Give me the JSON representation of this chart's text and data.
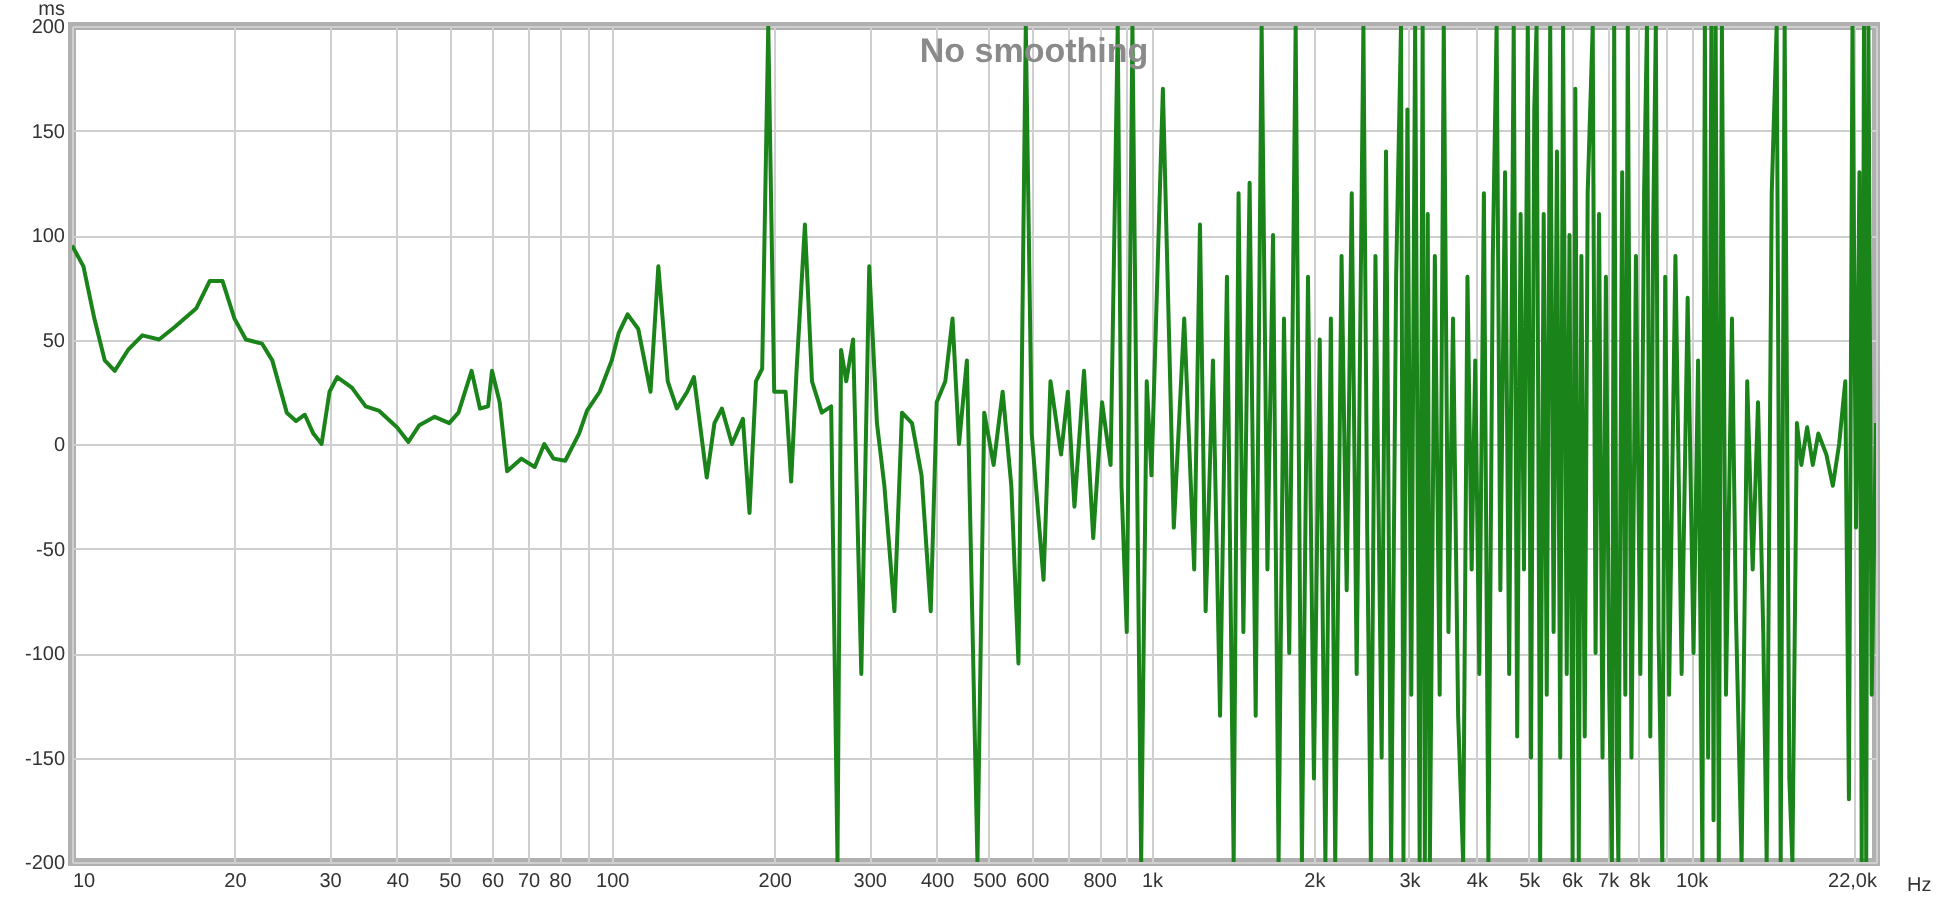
{
  "chart_data": {
    "type": "line",
    "title": "No smoothing",
    "xlabel": "Hz",
    "ylabel": "ms",
    "log": "x",
    "grid": true,
    "marker": "none",
    "line_style": "solid",
    "legend": false,
    "xlim": [
      10,
      22000
    ],
    "ylim": [
      -200,
      200
    ],
    "xticks": [
      10,
      20,
      30,
      40,
      50,
      60,
      70,
      80,
      {
        "value": 90,
        "label": null
      },
      100,
      200,
      300,
      400,
      500,
      600,
      {
        "value": 700,
        "label": null
      },
      800,
      {
        "value": 900,
        "label": null
      },
      {
        "value": 1000,
        "label": "1k"
      },
      {
        "value": 2000,
        "label": "2k"
      },
      {
        "value": 3000,
        "label": "3k"
      },
      {
        "value": 4000,
        "label": "4k"
      },
      {
        "value": 5000,
        "label": "5k"
      },
      {
        "value": 6000,
        "label": "6k"
      },
      {
        "value": 7000,
        "label": "7k"
      },
      {
        "value": 8000,
        "label": "8k"
      },
      {
        "value": 9000,
        "label": null
      },
      {
        "value": 10000,
        "label": "10k"
      },
      {
        "value": 20000,
        "label": null
      },
      {
        "value": 22000,
        "label": "22,0k"
      }
    ],
    "yticks": [
      -200,
      -150,
      -100,
      -50,
      0,
      50,
      100,
      150,
      200
    ],
    "x": [
      10,
      10.5,
      11,
      11.5,
      12,
      12.7,
      13.5,
      14.5,
      15.5,
      17,
      18,
      19,
      20,
      21,
      22.5,
      23.5,
      25,
      26,
      27,
      28,
      29,
      30,
      31,
      33,
      35,
      37,
      40,
      42,
      44,
      47,
      50,
      52,
      55,
      57,
      59,
      60,
      62,
      64,
      68,
      72,
      75,
      78,
      82,
      87,
      90,
      95,
      100,
      103,
      107,
      112,
      118,
      122,
      127,
      132,
      138,
      142,
      150,
      155,
      160,
      167,
      175,
      180,
      185,
      190,
      195,
      200,
      210,
      215,
      220,
      228,
      235,
      245,
      255,
      262,
      266,
      272,
      280,
      290,
      300,
      310,
      320,
      334,
      345,
      360,
      375,
      390,
      400,
      415,
      428,
      440,
      455,
      476,
      490,
      510,
      530,
      550,
      567,
      585,
      600,
      631,
      650,
      680,
      700,
      720,
      750,
      780,
      810,
      840,
      866,
      880,
      900,
      922,
      940,
      957,
      980,
      1000,
      1050,
      1100,
      1150,
      1200,
      1230,
      1260,
      1300,
      1340,
      1380,
      1420,
      1450,
      1480,
      1520,
      1560,
      1600,
      1640,
      1680,
      1720,
      1760,
      1800,
      1850,
      1900,
      1950,
      2000,
      2050,
      2100,
      2150,
      2190,
      2250,
      2300,
      2350,
      2400,
      2470,
      2510,
      2550,
      2600,
      2670,
      2720,
      2780,
      2840,
      2900,
      2930,
      2980,
      3030,
      3080,
      3140,
      3180,
      3210,
      3250,
      3280,
      3350,
      3420,
      3480,
      3550,
      3620,
      3700,
      3780,
      3850,
      3920,
      3980,
      4050,
      4130,
      4210,
      4290,
      4360,
      4430,
      4520,
      4600,
      4690,
      4760,
      4830,
      4900,
      4980,
      5050,
      5120,
      5170,
      5250,
      5330,
      5400,
      5480,
      5560,
      5640,
      5720,
      5790,
      5880,
      5950,
      6030,
      6100,
      6190,
      6260,
      6350,
      6430,
      6570,
      6650,
      6750,
      6850,
      6950,
      7050,
      7130,
      7200,
      7280,
      7330,
      7450,
      7550,
      7630,
      7750,
      7900,
      8050,
      8180,
      8280,
      8400,
      8500,
      8600,
      8700,
      8840,
      8950,
      9100,
      9350,
      9600,
      9850,
      10100,
      10300,
      10490,
      10600,
      10750,
      10900,
      11000,
      11100,
      11250,
      11400,
      11600,
      11900,
      12100,
      12400,
      12700,
      13000,
      13300,
      13600,
      13800,
      14100,
      14400,
      14650,
      14900,
      15200,
      15400,
      15700,
      16000,
      16400,
      16800,
      17200,
      17800,
      18300,
      18800,
      19300,
      19600,
      19900,
      20200,
      20500,
      20700,
      20900,
      21100,
      21300,
      21600,
      22000
    ],
    "series": [
      {
        "color": "#1a841a",
        "values": [
          95,
          85,
          60,
          40,
          35,
          45,
          52,
          50,
          56,
          65,
          78,
          78,
          60,
          50,
          48,
          40,
          15,
          11,
          14,
          5,
          0,
          25,
          32,
          27,
          18,
          16,
          8,
          1,
          9,
          13,
          10,
          15,
          35,
          17,
          18,
          35,
          20,
          -13,
          -7,
          -11,
          0,
          -7,
          -8,
          5,
          16,
          25,
          40,
          53,
          62,
          55,
          25,
          85,
          30,
          17,
          25,
          32,
          -16,
          10,
          17,
          0,
          12,
          -33,
          30,
          36,
          200,
          25,
          25,
          -18,
          35,
          105,
          30,
          15,
          18,
          -200,
          45,
          30,
          50,
          -110,
          85,
          10,
          -20,
          -80,
          15,
          10,
          -15,
          -80,
          20,
          30,
          60,
          0,
          40,
          -200,
          15,
          -10,
          25,
          -20,
          -105,
          200,
          5,
          -65,
          30,
          -5,
          25,
          -30,
          35,
          -45,
          20,
          -10,
          200,
          -20,
          -90,
          200,
          -10,
          -200,
          30,
          -15,
          170,
          -40,
          60,
          -60,
          105,
          -80,
          40,
          -130,
          80,
          -200,
          120,
          -90,
          125,
          -130,
          200,
          -60,
          100,
          -200,
          60,
          -100,
          200,
          -200,
          80,
          -160,
          50,
          -200,
          60,
          -200,
          90,
          -70,
          120,
          -110,
          200,
          -40,
          -200,
          90,
          -150,
          140,
          -200,
          80,
          200,
          -200,
          160,
          -120,
          200,
          -200,
          200,
          -200,
          110,
          -200,
          90,
          -120,
          200,
          -90,
          60,
          -130,
          -200,
          80,
          -60,
          40,
          -110,
          120,
          -200,
          90,
          200,
          -70,
          130,
          -110,
          200,
          -140,
          110,
          -60,
          200,
          -150,
          160,
          200,
          -200,
          110,
          -120,
          200,
          -90,
          140,
          -150,
          200,
          -110,
          100,
          -200,
          170,
          -200,
          90,
          -140,
          120,
          200,
          -100,
          110,
          -150,
          80,
          -120,
          -200,
          200,
          -150,
          -200,
          130,
          -120,
          200,
          -150,
          90,
          -110,
          120,
          200,
          -140,
          100,
          200,
          -90,
          -200,
          80,
          -120,
          90,
          -110,
          70,
          -100,
          40,
          -200,
          200,
          -150,
          200,
          -180,
          200,
          -200,
          200,
          -120,
          60,
          -80,
          -200,
          30,
          -60,
          20,
          -90,
          -200,
          120,
          200,
          -200,
          200,
          -160,
          -200,
          10,
          -10,
          8,
          -10,
          5,
          -5,
          -20,
          0,
          30,
          -170,
          200,
          -40,
          130,
          -200,
          200,
          -200,
          200,
          -120,
          10
        ]
      }
    ]
  }
}
